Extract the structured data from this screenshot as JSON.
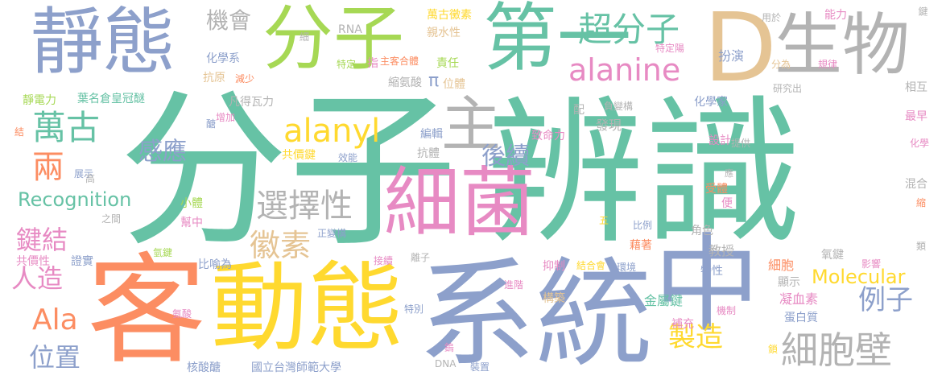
{
  "palette": {
    "teal": "#66c2a5",
    "orange": "#fc8d62",
    "blue": "#8da0cb",
    "pink": "#e78ac3",
    "green": "#a6d854",
    "yellow": "#ffd92f",
    "tan": "#e5c494",
    "gray": "#b3b3b3"
  },
  "words": [
    {
      "text": "分子",
      "color": "teal",
      "weight": 1.0
    },
    {
      "text": "辨識",
      "color": "teal",
      "weight": 0.97
    },
    {
      "text": "系統",
      "color": "blue",
      "weight": 0.72
    },
    {
      "text": "客",
      "color": "orange",
      "weight": 0.72
    },
    {
      "text": "動態",
      "color": "yellow",
      "weight": 0.6
    },
    {
      "text": "中",
      "color": "blue",
      "weight": 0.6
    },
    {
      "text": "細菌",
      "color": "pink",
      "weight": 0.5
    },
    {
      "text": "靜態",
      "color": "blue",
      "weight": 0.5
    },
    {
      "text": "分子",
      "color": "green",
      "weight": 0.5
    },
    {
      "text": "第一",
      "color": "teal",
      "weight": 0.5
    },
    {
      "text": "D",
      "color": "tan",
      "weight": 0.55
    },
    {
      "text": "生物",
      "color": "gray",
      "weight": 0.45
    },
    {
      "text": "主",
      "color": "gray",
      "weight": 0.4
    },
    {
      "text": "超分子",
      "color": "teal",
      "weight": 0.3
    },
    {
      "text": "alanine",
      "color": "pink",
      "weight": 0.3
    },
    {
      "text": "alanyl",
      "color": "yellow",
      "weight": 0.28
    },
    {
      "text": "細胞壁",
      "color": "gray",
      "weight": 0.3
    },
    {
      "text": "選擇性",
      "color": "gray",
      "weight": 0.3
    },
    {
      "text": "徽素",
      "color": "tan",
      "weight": 0.3
    },
    {
      "text": "萬古",
      "color": "teal",
      "weight": 0.3
    },
    {
      "text": "機會",
      "color": "gray",
      "weight": 0.2
    },
    {
      "text": "感應",
      "color": "blue",
      "weight": 0.2
    },
    {
      "text": "後續",
      "color": "blue",
      "weight": 0.22
    },
    {
      "text": "例子",
      "color": "blue",
      "weight": 0.24
    },
    {
      "text": "製造",
      "color": "yellow",
      "weight": 0.22
    },
    {
      "text": "兩",
      "color": "orange",
      "weight": 0.25
    },
    {
      "text": "鍵結",
      "color": "pink",
      "weight": 0.22
    },
    {
      "text": "人造",
      "color": "pink",
      "weight": 0.22
    },
    {
      "text": "Ala",
      "color": "orange",
      "weight": 0.22
    },
    {
      "text": "位置",
      "color": "blue",
      "weight": 0.22
    },
    {
      "text": "Recognition",
      "color": "teal",
      "weight": 0.16
    },
    {
      "text": "Molecular",
      "color": "yellow",
      "weight": 0.16
    },
    {
      "text": "π",
      "color": "blue",
      "weight": 0.14
    },
    {
      "text": "RNA",
      "color": "gray",
      "weight": 0.08
    },
    {
      "text": "細",
      "color": "gray",
      "weight": 0.06
    },
    {
      "text": "化學系",
      "color": "blue",
      "weight": 0.08
    },
    {
      "text": "抗原",
      "color": "tan",
      "weight": 0.08
    },
    {
      "text": "減少",
      "color": "orange",
      "weight": 0.06
    },
    {
      "text": "靜電力",
      "color": "green",
      "weight": 0.08
    },
    {
      "text": "葉名倉皇冠醚",
      "color": "teal",
      "weight": 0.08
    },
    {
      "text": "特定",
      "color": "green",
      "weight": 0.07
    },
    {
      "text": "指",
      "color": "pink",
      "weight": 0.08
    },
    {
      "text": "萬古黴素",
      "color": "yellow",
      "weight": 0.08
    },
    {
      "text": "親水性",
      "color": "tan",
      "weight": 0.08
    },
    {
      "text": "主客合體",
      "color": "orange",
      "weight": 0.07
    },
    {
      "text": "責任",
      "color": "green",
      "weight": 0.08
    },
    {
      "text": "縮氨酸",
      "color": "gray",
      "weight": 0.08
    },
    {
      "text": "位體",
      "color": "tan",
      "weight": 0.08
    },
    {
      "text": "特定陽",
      "color": "pink",
      "weight": 0.07
    },
    {
      "text": "扮演",
      "color": "blue",
      "weight": 0.09
    },
    {
      "text": "用於",
      "color": "gray",
      "weight": 0.06
    },
    {
      "text": "能力",
      "color": "pink",
      "weight": 0.08
    },
    {
      "text": "鍵",
      "color": "gray",
      "weight": 0.06
    },
    {
      "text": "分為",
      "color": "tan",
      "weight": 0.07
    },
    {
      "text": "規律",
      "color": "pink",
      "weight": 0.07
    },
    {
      "text": "研究出",
      "color": "gray",
      "weight": 0.06
    },
    {
      "text": "相互",
      "color": "gray",
      "weight": 0.08
    },
    {
      "text": "凡得瓦力",
      "color": "gray",
      "weight": 0.08
    },
    {
      "text": "負變構",
      "color": "gray",
      "weight": 0.06
    },
    {
      "text": "配",
      "color": "gray",
      "weight": 0.07
    },
    {
      "text": "發現",
      "color": "gray",
      "weight": 0.09
    },
    {
      "text": "化學家",
      "color": "blue",
      "weight": 0.08
    },
    {
      "text": "最早",
      "color": "pink",
      "weight": 0.08
    },
    {
      "text": "化學",
      "color": "pink",
      "weight": 0.06
    },
    {
      "text": "結",
      "color": "orange",
      "weight": 0.06
    },
    {
      "text": "醣",
      "color": "blue",
      "weight": 0.06
    },
    {
      "text": "增加",
      "color": "pink",
      "weight": 0.06
    },
    {
      "text": "展示",
      "color": "blue",
      "weight": 0.06
    },
    {
      "text": "共價鍵",
      "color": "yellow",
      "weight": 0.07
    },
    {
      "text": "效能",
      "color": "blue",
      "weight": 0.06
    },
    {
      "text": "編輯",
      "color": "blue",
      "weight": 0.08
    },
    {
      "text": "抗體",
      "color": "gray",
      "weight": 0.08
    },
    {
      "text": "致命力",
      "color": "pink",
      "weight": 0.08
    },
    {
      "text": "設計",
      "color": "pink",
      "weight": 0.07
    },
    {
      "text": "提供",
      "color": "gray",
      "weight": 0.06
    },
    {
      "text": "高",
      "color": "gray",
      "weight": 0.06
    },
    {
      "text": "應",
      "color": "gray",
      "weight": 0.05
    },
    {
      "text": "混合",
      "color": "gray",
      "weight": 0.07
    },
    {
      "text": "受體",
      "color": "orange",
      "weight": 0.08
    },
    {
      "text": "小體",
      "color": "green",
      "weight": 0.07
    },
    {
      "text": "之間",
      "color": "gray",
      "weight": 0.06
    },
    {
      "text": "幫中",
      "color": "pink",
      "weight": 0.07
    },
    {
      "text": "便",
      "color": "pink",
      "weight": 0.07
    },
    {
      "text": "縮",
      "color": "orange",
      "weight": 0.06
    },
    {
      "text": "五",
      "color": "yellow",
      "weight": 0.06
    },
    {
      "text": "比例",
      "color": "blue",
      "weight": 0.06
    },
    {
      "text": "角色",
      "color": "gray",
      "weight": 0.08
    },
    {
      "text": "正變構",
      "color": "blue",
      "weight": 0.06
    },
    {
      "text": "共價性",
      "color": "pink",
      "weight": 0.07
    },
    {
      "text": "證實",
      "color": "blue",
      "weight": 0.07
    },
    {
      "text": "氫鍵",
      "color": "green",
      "weight": 0.06
    },
    {
      "text": "比喻為",
      "color": "blue",
      "weight": 0.07
    },
    {
      "text": "接續",
      "color": "pink",
      "weight": 0.06
    },
    {
      "text": "離子",
      "color": "gray",
      "weight": 0.06
    },
    {
      "text": "藉著",
      "color": "orange",
      "weight": 0.08
    },
    {
      "text": "教授",
      "color": "gray",
      "weight": 0.08
    },
    {
      "text": "氧鍵",
      "color": "gray",
      "weight": 0.07
    },
    {
      "text": "類",
      "color": "gray",
      "weight": 0.06
    },
    {
      "text": "影響",
      "color": "pink",
      "weight": 0.06
    },
    {
      "text": "抑制",
      "color": "pink",
      "weight": 0.06
    },
    {
      "text": "結合會",
      "color": "yellow",
      "weight": 0.06
    },
    {
      "text": "環境",
      "color": "blue",
      "weight": 0.06
    },
    {
      "text": "特性",
      "color": "blue",
      "weight": 0.07
    },
    {
      "text": "細胞",
      "color": "orange",
      "weight": 0.08
    },
    {
      "text": "顯示",
      "color": "gray",
      "weight": 0.07
    },
    {
      "text": "進階",
      "color": "pink",
      "weight": 0.06
    },
    {
      "text": "構築",
      "color": "tan",
      "weight": 0.07
    },
    {
      "text": "凝血素",
      "color": "pink",
      "weight": 0.08
    },
    {
      "text": "氨酸",
      "color": "pink",
      "weight": 0.06
    },
    {
      "text": "特別",
      "color": "blue",
      "weight": 0.06
    },
    {
      "text": "機制",
      "color": "pink",
      "weight": 0.06
    },
    {
      "text": "金屬鍵",
      "color": "teal",
      "weight": 0.08
    },
    {
      "text": "蛋白質",
      "color": "blue",
      "weight": 0.08
    },
    {
      "text": "補充",
      "color": "pink",
      "weight": 0.07
    },
    {
      "text": "鎢",
      "color": "pink",
      "weight": 0.06
    },
    {
      "text": "鎖",
      "color": "yellow",
      "weight": 0.06
    },
    {
      "text": "核酸醣",
      "color": "blue",
      "weight": 0.07
    },
    {
      "text": "國立台灣師範大學",
      "color": "blue",
      "weight": 0.07
    },
    {
      "text": "DNA",
      "color": "gray",
      "weight": 0.06
    },
    {
      "text": "裝置",
      "color": "blue",
      "weight": 0.06
    }
  ]
}
